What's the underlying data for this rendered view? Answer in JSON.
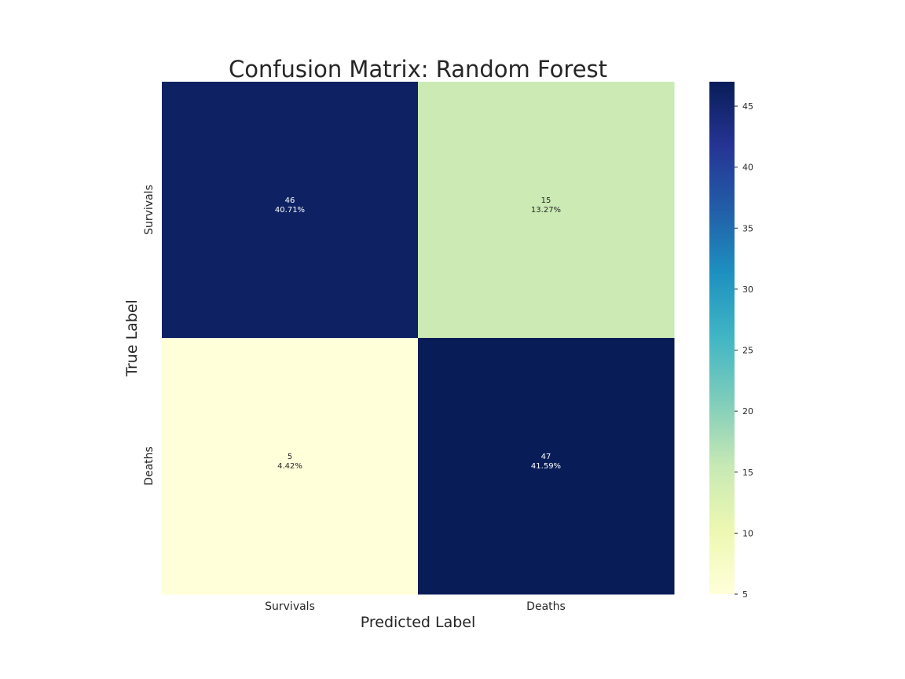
{
  "chart_data": {
    "type": "heatmap",
    "title": "Confusion Matrix: Random Forest",
    "xlabel": "Predicted Label",
    "ylabel": "True Label",
    "x_categories": [
      "Survivals",
      "Deaths"
    ],
    "y_categories": [
      "Survivals",
      "Deaths"
    ],
    "values": [
      [
        46,
        15
      ],
      [
        5,
        47
      ]
    ],
    "cell_labels": [
      [
        "46\n40.71%",
        "15\n13.27%"
      ],
      [
        "5\n4.42%",
        "47\n41.59%"
      ]
    ],
    "colormap": "YlGnBu",
    "colorbar": {
      "vmin": 5,
      "vmax": 47,
      "ticks": [
        5,
        10,
        15,
        20,
        25,
        30,
        35,
        40,
        45
      ]
    },
    "grid": false
  }
}
